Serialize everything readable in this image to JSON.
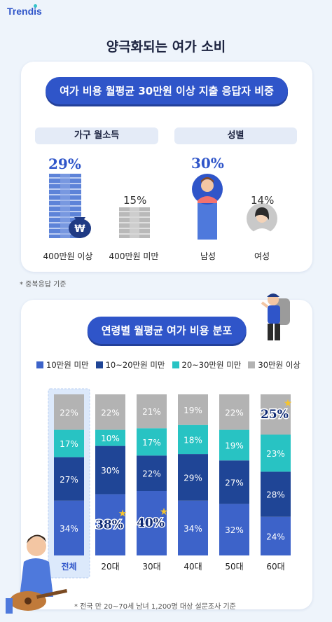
{
  "logo": "Trendis",
  "title": "양극화되는 여가 소비",
  "section1": {
    "pill": "여가 비용 월평균 30만원 이상 지출 응답자 비중",
    "income": {
      "header": "가구 월소득",
      "items": [
        {
          "label": "400만원 이상",
          "value": "29%",
          "value_num": 29
        },
        {
          "label": "400만원 미만",
          "value": "15%",
          "value_num": 15
        }
      ]
    },
    "gender": {
      "header": "성별",
      "items": [
        {
          "label": "남성",
          "value": "30%",
          "value_num": 30
        },
        {
          "label": "여성",
          "value": "14%",
          "value_num": 14
        }
      ]
    },
    "note": "* 중복응답 기준"
  },
  "section2": {
    "pill": "연령별 월평균 여가 비용 분포",
    "note": "* 전국 만 20~70세 남녀 1,200명 대상 설문조사 기준"
  },
  "colors": {
    "s1": "#3d63c9",
    "s2": "#1f4596",
    "s3": "#28c3c3",
    "s4": "#b3b3b3"
  },
  "chart_data": {
    "type": "bar",
    "stacked": true,
    "categories": [
      "전체",
      "20대",
      "30대",
      "40대",
      "50대",
      "60대"
    ],
    "series": [
      {
        "name": "10만원 미만",
        "values": [
          34,
          38,
          40,
          34,
          32,
          24
        ]
      },
      {
        "name": "10~20만원 미만",
        "values": [
          27,
          30,
          22,
          29,
          27,
          28
        ]
      },
      {
        "name": "20~30만원 미만",
        "values": [
          17,
          10,
          17,
          18,
          19,
          23
        ]
      },
      {
        "name": "30만원 이상",
        "values": [
          22,
          22,
          21,
          19,
          22,
          25
        ]
      }
    ],
    "labels": [
      [
        "34%",
        "38%",
        "40%",
        "34%",
        "32%",
        "24%"
      ],
      [
        "27%",
        "30%",
        "22%",
        "29%",
        "27%",
        "28%"
      ],
      [
        "17%",
        "10%",
        "17%",
        "18%",
        "19%",
        "23%"
      ],
      [
        "22%",
        "22%",
        "21%",
        "19%",
        "22%",
        "25%"
      ]
    ],
    "highlights": [
      "38%",
      "40%",
      "25%"
    ],
    "ylim": [
      0,
      100
    ]
  }
}
